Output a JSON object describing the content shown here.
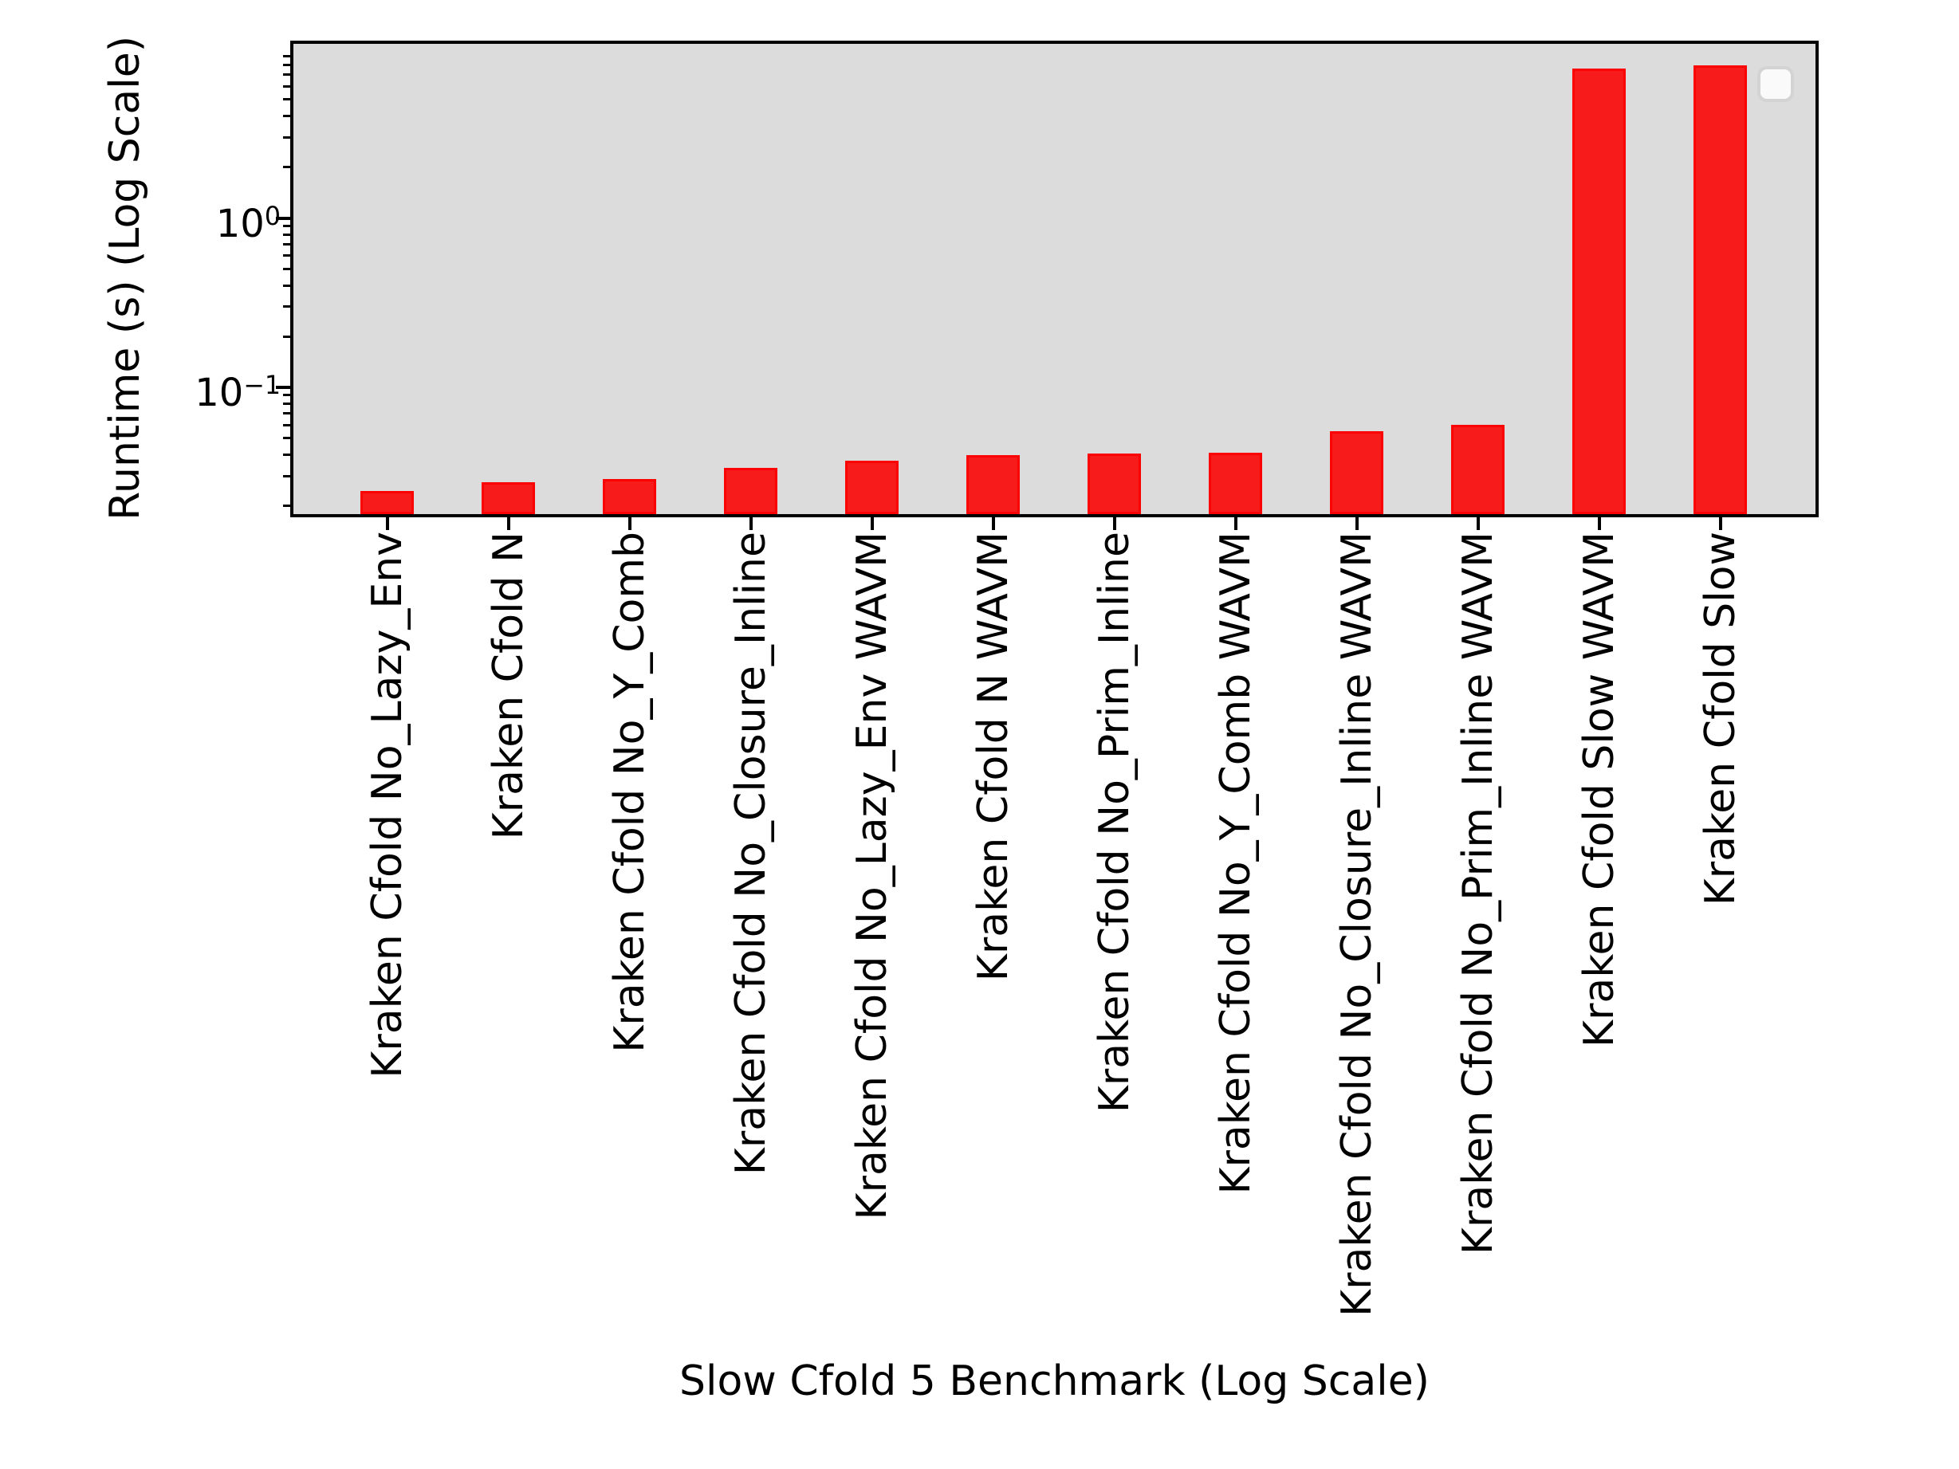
{
  "chart_data": {
    "type": "bar",
    "title": "",
    "xlabel": "Slow Cfold 5 Benchmark (Log Scale)",
    "ylabel": "Runtime (s) (Log Scale)",
    "yscale": "log",
    "ylim": [
      0.0182,
      10.6
    ],
    "grid": false,
    "legend_position": "upper right",
    "legend_entries": [],
    "categories": [
      "Kraken Cfold No_Lazy_Env",
      "Kraken Cfold N",
      "Kraken Cfold No_Y_Comb",
      "Kraken Cfold No_Closure_Inline",
      "Kraken Cfold No_Lazy_Env WAVM",
      "Kraken Cfold N WAVM",
      "Kraken Cfold No_Prim_Inline",
      "Kraken Cfold No_Y_Comb WAVM",
      "Kraken Cfold No_Closure_Inline WAVM",
      "Kraken Cfold No_Prim_Inline WAVM",
      "Kraken Cfold Slow WAVM",
      "Kraken Cfold Slow"
    ],
    "values": [
      0.0244,
      0.0276,
      0.0289,
      0.0335,
      0.0369,
      0.0398,
      0.0408,
      0.0412,
      0.0551,
      0.0601,
      7.62,
      7.96
    ],
    "y_ticks": [
      {
        "base": "10",
        "exp": "0",
        "value": 1
      },
      {
        "base": "10",
        "exp": "−1",
        "value": 0.1
      }
    ],
    "colors": {
      "bar_fill": "#f71b1b",
      "bar_edge": "#fb0303",
      "plot_background": "#dcdcdc",
      "figure_background": "#ffffff",
      "axis": "#000000"
    }
  }
}
